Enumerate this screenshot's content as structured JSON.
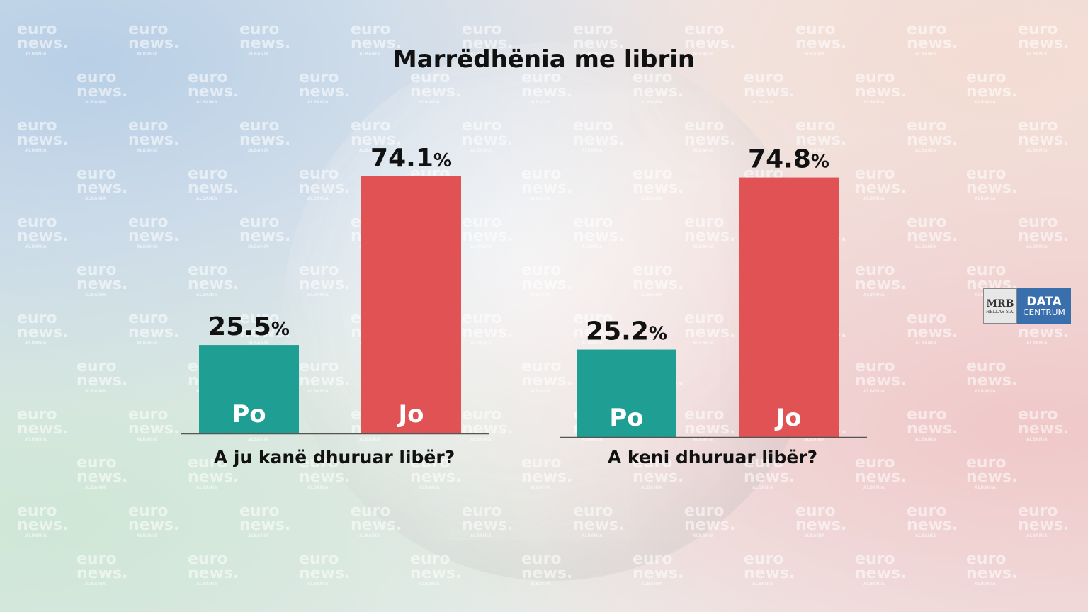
{
  "title": "Marrëdhënia me librin",
  "watermark": {
    "line1": "euro",
    "line2": "news.",
    "line3": "ALBANIA"
  },
  "logo": {
    "mrb": "MRB",
    "hellas": "HELLAS S.A.",
    "data": "DATA",
    "centrum": "CENTRUM"
  },
  "colors": {
    "po": "#1f9e93",
    "jo": "#e05254",
    "text": "#111111",
    "axis": "#555555"
  },
  "chart_data": [
    {
      "type": "bar",
      "title": "A ju kanë dhuruar libër?",
      "categories": [
        "Po",
        "Jo"
      ],
      "values": [
        25.5,
        74.1
      ],
      "unit": "%",
      "ylim": [
        0,
        100
      ],
      "grid": false
    },
    {
      "type": "bar",
      "title": "A keni dhuruar libër?",
      "categories": [
        "Po",
        "Jo"
      ],
      "values": [
        25.2,
        74.8
      ],
      "unit": "%",
      "ylim": [
        0,
        100
      ],
      "grid": false
    }
  ]
}
